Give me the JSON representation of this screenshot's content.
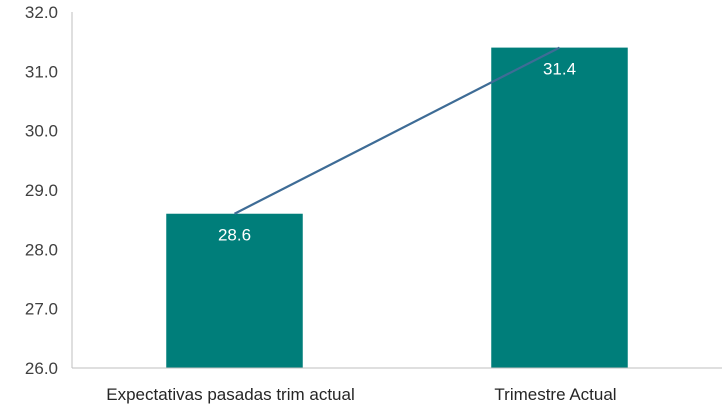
{
  "chart_data": {
    "type": "bar",
    "categories": [
      "Expectativas pasadas trim actual",
      "Trimestre Actual"
    ],
    "values": [
      28.6,
      31.4
    ],
    "data_labels": [
      "28.6",
      "31.4"
    ],
    "overlay_line": true,
    "ylim": [
      26.0,
      32.0
    ],
    "yticks": [
      "26.0",
      "27.0",
      "28.0",
      "29.0",
      "30.0",
      "31.0",
      "32.0"
    ],
    "title": "",
    "xlabel": "",
    "ylabel": "",
    "grid": false,
    "colors": {
      "bar": "#007E7A",
      "line": "#3E6C96",
      "axis": "#BFBFBF"
    }
  }
}
